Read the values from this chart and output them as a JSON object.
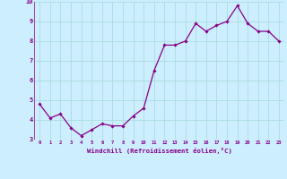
{
  "x": [
    0,
    1,
    2,
    3,
    4,
    5,
    6,
    7,
    8,
    9,
    10,
    11,
    12,
    13,
    14,
    15,
    16,
    17,
    18,
    19,
    20,
    21,
    22,
    23
  ],
  "y": [
    4.8,
    4.1,
    4.3,
    3.6,
    3.2,
    3.5,
    3.8,
    3.7,
    3.7,
    4.2,
    4.6,
    6.5,
    7.8,
    7.8,
    8.0,
    8.9,
    8.5,
    8.8,
    9.0,
    9.8,
    8.9,
    8.5,
    8.5,
    8.0
  ],
  "line_color": "#880088",
  "marker": "D",
  "marker_size": 1.8,
  "background_color": "#cceeff",
  "plot_bg_color": "#cceeff",
  "grid_color": "#aadddd",
  "xlabel": "Windchill (Refroidissement éolien,°C)",
  "xlabel_color": "#880088",
  "tick_color": "#880088",
  "ylim": [
    3,
    10
  ],
  "xlim": [
    -0.5,
    23.5
  ],
  "yticks": [
    3,
    4,
    5,
    6,
    7,
    8,
    9,
    10
  ],
  "xticks": [
    0,
    1,
    2,
    3,
    4,
    5,
    6,
    7,
    8,
    9,
    10,
    11,
    12,
    13,
    14,
    15,
    16,
    17,
    18,
    19,
    20,
    21,
    22,
    23
  ]
}
